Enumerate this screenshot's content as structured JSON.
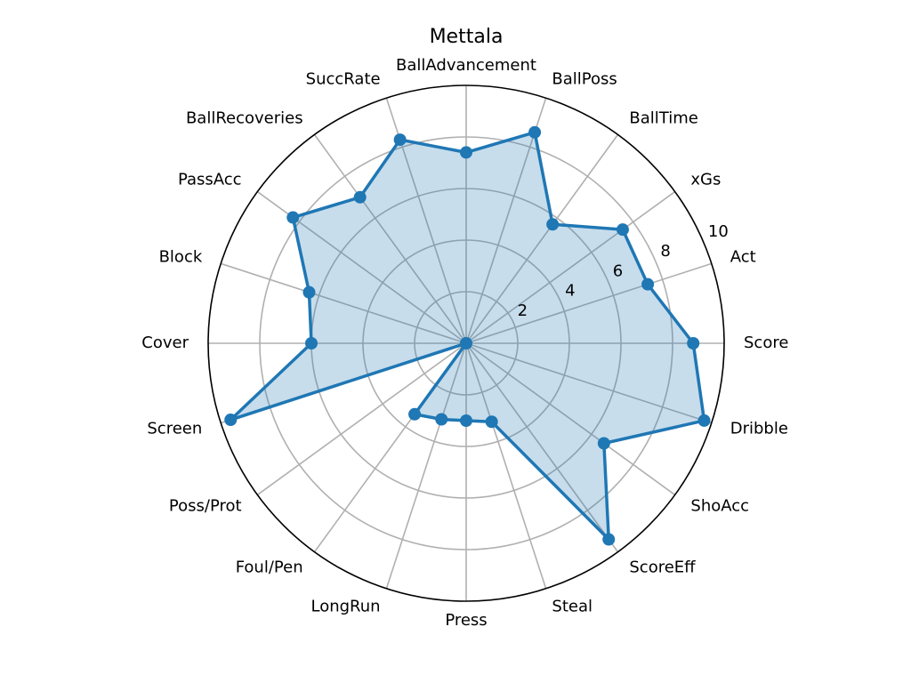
{
  "chart_data": {
    "type": "radar",
    "title": "Mettala",
    "categories": [
      "Score",
      "Act",
      "xGs",
      "BallTime",
      "BallPoss",
      "BallAdvancement",
      "SuccRate",
      "BallRecoveries",
      "PassAcc",
      "Block",
      "Cover",
      "Screen",
      "Poss/Prot",
      "Foul/Pen",
      "LongRun",
      "Press",
      "Steal",
      "ScoreEff",
      "ShoAcc",
      "Dribble"
    ],
    "series": [
      {
        "values": [
          8.8,
          7.4,
          7.5,
          5.7,
          8.6,
          7.4,
          8.3,
          7.0,
          8.3,
          6.4,
          6.0,
          9.6,
          0.0,
          3.4,
          3.1,
          3.0,
          3.2,
          9.4,
          6.6,
          9.7
        ],
        "color": "#1f77b4",
        "fill": "#1f77b4"
      }
    ],
    "rticks": [
      2,
      4,
      6,
      8,
      10
    ],
    "rlim": [
      0,
      10
    ],
    "grid": true,
    "legend": "none"
  }
}
